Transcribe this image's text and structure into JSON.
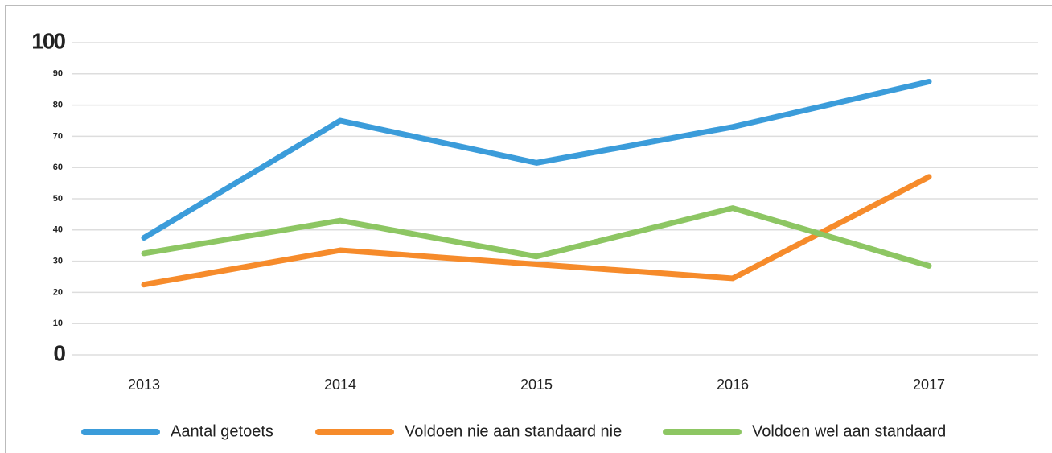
{
  "chart_data": {
    "type": "line",
    "categories": [
      "2013",
      "2014",
      "2015",
      "2016",
      "2017"
    ],
    "series": [
      {
        "name": "Aantal getoets",
        "color": "#3b9cda",
        "values": [
          37.5,
          75,
          61.5,
          73,
          87.5
        ]
      },
      {
        "name": "Voldoen nie aan standaard nie",
        "color": "#f68b2b",
        "values": [
          22.5,
          33.5,
          29,
          24.5,
          57
        ]
      },
      {
        "name": "Voldoen wel aan standaard",
        "color": "#8dc663",
        "values": [
          32.5,
          43,
          31.5,
          47,
          28.5
        ]
      }
    ],
    "ylim": [
      0,
      100
    ],
    "yticks": [
      0,
      10,
      20,
      30,
      40,
      50,
      60,
      70,
      80,
      90,
      100
    ],
    "grid": true
  }
}
